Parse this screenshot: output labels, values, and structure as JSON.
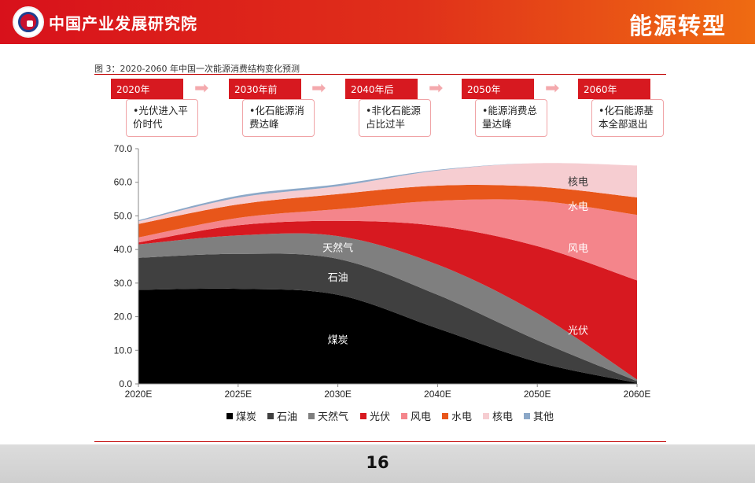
{
  "header": {
    "org_name": "中国产业发展研究院",
    "section_title": "能源转型"
  },
  "figure": {
    "title": "图 3：2020-2060 年中国一次能源消费结构变化预测"
  },
  "timeline": [
    {
      "stage": "2020年",
      "note": "•光伏进入平价时代"
    },
    {
      "stage": "2030年前",
      "note": "•化石能源消费达峰"
    },
    {
      "stage": "2040年后",
      "note": "•非化石能源占比过半"
    },
    {
      "stage": "2050年",
      "note": "•能源消费总量达峰"
    },
    {
      "stage": "2060年",
      "note": "•化石能源基本全部退出"
    }
  ],
  "chart_data": {
    "type": "area",
    "stacked": true,
    "categories": [
      "2020E",
      "2025E",
      "2030E",
      "2040E",
      "2050E",
      "2060E"
    ],
    "ylim": [
      0,
      70
    ],
    "yticks": [
      "0.0",
      "10.0",
      "20.0",
      "30.0",
      "40.0",
      "50.0",
      "60.0",
      "70.0"
    ],
    "grid": false,
    "legend_position": "bottom",
    "series": [
      {
        "name": "煤炭",
        "color": "#000000",
        "values": [
          28.0,
          28.3,
          26.5,
          16.5,
          6.5,
          0.3
        ]
      },
      {
        "name": "石油",
        "color": "#404040",
        "values": [
          9.5,
          10.4,
          10.7,
          10.0,
          6.5,
          0.5
        ]
      },
      {
        "name": "天然气",
        "color": "#7f7f7f",
        "values": [
          4.0,
          5.5,
          6.8,
          9.0,
          8.0,
          0.5
        ]
      },
      {
        "name": "光伏",
        "color": "#d71920",
        "values": [
          0.6,
          3.0,
          4.5,
          11.5,
          20.0,
          29.5
        ]
      },
      {
        "name": "风电",
        "color": "#f4858b",
        "values": [
          1.5,
          2.2,
          3.5,
          7.5,
          13.5,
          19.5
        ]
      },
      {
        "name": "水电",
        "color": "#e8561a",
        "values": [
          4.0,
          4.0,
          4.5,
          4.5,
          4.2,
          5.2
        ]
      },
      {
        "name": "核电",
        "color": "#f6cdd1",
        "values": [
          0.8,
          2.0,
          2.3,
          4.5,
          7.0,
          9.5
        ]
      },
      {
        "name": "其他",
        "color": "#8ca8c8",
        "values": [
          0.3,
          0.6,
          0.6,
          0.2,
          0.0,
          0.0
        ]
      }
    ],
    "area_labels": [
      {
        "text": "煤炭",
        "series": 0,
        "at": 2
      },
      {
        "text": "石油",
        "series": 1,
        "at": 2
      },
      {
        "text": "天然气",
        "series": 2,
        "at": 2
      },
      {
        "text": "光伏",
        "series": 3,
        "at": 5
      },
      {
        "text": "风电",
        "series": 4,
        "at": 5
      },
      {
        "text": "水电",
        "series": 5,
        "at": 5
      },
      {
        "text": "核电",
        "series": 6,
        "at": 5
      }
    ]
  },
  "footer": {
    "page_number": "16"
  }
}
